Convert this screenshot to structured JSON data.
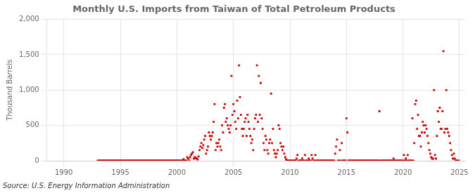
{
  "chart_data": {
    "type": "scatter",
    "title": "Monthly U.S. Imports from Taiwan of Total Petroleum Products",
    "y_label": "Thousand Barrels",
    "source": "Source: U.S. Energy Information Administration",
    "color": "#CC0000",
    "marker": "square",
    "grid": true,
    "xlim": [
      1988.5,
      2025.5
    ],
    "xticks": [
      1990,
      1995,
      2000,
      2005,
      2010,
      2015,
      2020,
      2025
    ],
    "ylim": [
      0,
      2000
    ],
    "yticks": [
      0,
      500,
      {
        "value": 1000,
        "label": "1,000"
      },
      {
        "value": 1500,
        "label": "1,500"
      },
      {
        "value": 2000,
        "label": "2,000"
      }
    ],
    "x": [
      1993.0,
      1993.083,
      1993.167,
      1993.25,
      1993.333,
      1993.417,
      1993.5,
      1993.583,
      1993.667,
      1993.75,
      1993.833,
      1993.917,
      1994.0,
      1994.083,
      1994.167,
      1994.25,
      1994.333,
      1994.417,
      1994.5,
      1994.583,
      1994.667,
      1994.75,
      1994.833,
      1994.917,
      1995.0,
      1995.083,
      1995.167,
      1995.25,
      1995.333,
      1995.417,
      1995.5,
      1995.583,
      1995.667,
      1995.75,
      1995.833,
      1995.917,
      1996.0,
      1996.083,
      1996.167,
      1996.25,
      1996.333,
      1996.417,
      1996.5,
      1996.583,
      1996.667,
      1996.75,
      1996.833,
      1996.917,
      1997.0,
      1997.083,
      1997.167,
      1997.25,
      1997.333,
      1997.417,
      1997.5,
      1997.583,
      1997.667,
      1997.75,
      1997.833,
      1997.917,
      1998.0,
      1998.083,
      1998.167,
      1998.25,
      1998.333,
      1998.417,
      1998.5,
      1998.583,
      1998.667,
      1998.75,
      1998.833,
      1998.917,
      1999.0,
      1999.083,
      1999.167,
      1999.25,
      1999.333,
      1999.417,
      1999.5,
      1999.583,
      1999.667,
      1999.75,
      1999.833,
      1999.917,
      2000.0,
      2000.083,
      2000.167,
      2000.25,
      2000.333,
      2000.417,
      2000.5,
      2000.583,
      2000.667,
      2000.75,
      2000.833,
      2000.917,
      2001.0,
      2001.083,
      2001.167,
      2001.25,
      2001.333,
      2001.417,
      2001.5,
      2001.583,
      2001.667,
      2001.75,
      2001.833,
      2001.917,
      2002.0,
      2002.083,
      2002.167,
      2002.25,
      2002.333,
      2002.417,
      2002.5,
      2002.583,
      2002.667,
      2002.75,
      2002.833,
      2002.917,
      2003.0,
      2003.083,
      2003.167,
      2003.25,
      2003.333,
      2003.417,
      2003.5,
      2003.583,
      2003.667,
      2003.75,
      2003.833,
      2003.917,
      2004.0,
      2004.083,
      2004.167,
      2004.25,
      2004.333,
      2004.417,
      2004.5,
      2004.583,
      2004.667,
      2004.75,
      2004.833,
      2004.917,
      2005.0,
      2005.083,
      2005.167,
      2005.25,
      2005.333,
      2005.417,
      2005.5,
      2005.583,
      2005.667,
      2005.75,
      2005.833,
      2005.917,
      2006.0,
      2006.083,
      2006.167,
      2006.25,
      2006.333,
      2006.417,
      2006.5,
      2006.583,
      2006.667,
      2006.75,
      2006.833,
      2006.917,
      2007.0,
      2007.083,
      2007.167,
      2007.25,
      2007.333,
      2007.417,
      2007.5,
      2007.583,
      2007.667,
      2007.75,
      2007.833,
      2007.917,
      2008.0,
      2008.083,
      2008.167,
      2008.25,
      2008.333,
      2008.417,
      2008.5,
      2008.583,
      2008.667,
      2008.75,
      2008.833,
      2008.917,
      2009.0,
      2009.083,
      2009.167,
      2009.25,
      2009.333,
      2009.417,
      2009.5,
      2009.583,
      2009.667,
      2009.75,
      2009.833,
      2009.917,
      2010.0,
      2010.083,
      2010.167,
      2010.25,
      2010.333,
      2010.417,
      2010.5,
      2010.583,
      2010.667,
      2010.75,
      2010.833,
      2010.917,
      2011.0,
      2011.083,
      2011.167,
      2011.25,
      2011.333,
      2011.417,
      2011.5,
      2011.583,
      2011.667,
      2011.75,
      2011.833,
      2011.917,
      2012.0,
      2012.083,
      2012.167,
      2012.25,
      2012.333,
      2012.417,
      2012.5,
      2012.583,
      2012.667,
      2012.75,
      2012.833,
      2012.917,
      2013.0,
      2013.083,
      2013.167,
      2013.25,
      2013.333,
      2013.417,
      2013.5,
      2013.583,
      2013.667,
      2013.75,
      2013.833,
      2013.917,
      2014.0,
      2014.083,
      2014.167,
      2014.25,
      2014.333,
      2014.417,
      2014.5,
      2014.583,
      2014.667,
      2014.75,
      2014.833,
      2014.917,
      2015.0,
      2015.083,
      2015.167,
      2015.25,
      2015.333,
      2015.417,
      2015.5,
      2015.583,
      2015.667,
      2015.75,
      2015.833,
      2015.917,
      2016.0,
      2016.083,
      2016.167,
      2016.25,
      2016.333,
      2016.417,
      2016.5,
      2016.583,
      2016.667,
      2016.75,
      2016.833,
      2016.917,
      2017.0,
      2017.083,
      2017.167,
      2017.25,
      2017.333,
      2017.417,
      2017.5,
      2017.583,
      2017.667,
      2017.75,
      2017.833,
      2017.917,
      2018.0,
      2018.083,
      2018.167,
      2018.25,
      2018.333,
      2018.417,
      2018.5,
      2018.583,
      2018.667,
      2018.75,
      2018.833,
      2018.917,
      2019.0,
      2019.083,
      2019.167,
      2019.25,
      2019.333,
      2019.417,
      2019.5,
      2019.583,
      2019.667,
      2019.75,
      2019.833,
      2019.917,
      2020.0,
      2020.083,
      2020.167,
      2020.25,
      2020.333,
      2020.417,
      2020.5,
      2020.583,
      2020.667,
      2020.75,
      2020.833,
      2020.917,
      2021.0,
      2021.083,
      2021.167,
      2021.25,
      2021.333,
      2021.417,
      2021.5,
      2021.583,
      2021.667,
      2021.75,
      2021.833,
      2021.917,
      2022.0,
      2022.083,
      2022.167,
      2022.25,
      2022.333,
      2022.417,
      2022.5,
      2022.583,
      2022.667,
      2022.75,
      2022.833,
      2022.917,
      2023.0,
      2023.083,
      2023.167,
      2023.25,
      2023.333,
      2023.417,
      2023.5,
      2023.583,
      2023.667,
      2023.75,
      2023.833,
      2023.917,
      2024.0,
      2024.083,
      2024.167,
      2024.25,
      2024.333,
      2024.417,
      2024.5,
      2024.583,
      2024.667,
      2024.75,
      2024.833,
      2024.917
    ],
    "values": [
      0,
      0,
      0,
      0,
      0,
      0,
      0,
      0,
      0,
      0,
      0,
      0,
      0,
      0,
      0,
      0,
      0,
      0,
      0,
      0,
      0,
      0,
      0,
      0,
      0,
      0,
      0,
      0,
      0,
      0,
      0,
      0,
      0,
      0,
      0,
      0,
      0,
      0,
      0,
      0,
      0,
      0,
      0,
      0,
      0,
      0,
      0,
      0,
      0,
      0,
      0,
      0,
      0,
      0,
      0,
      0,
      0,
      0,
      0,
      0,
      0,
      0,
      0,
      0,
      0,
      0,
      0,
      0,
      0,
      0,
      0,
      0,
      0,
      0,
      0,
      0,
      0,
      0,
      0,
      0,
      0,
      0,
      0,
      0,
      0,
      0,
      0,
      0,
      0,
      0,
      0,
      20,
      0,
      0,
      0,
      50,
      30,
      0,
      50,
      80,
      100,
      120,
      30,
      50,
      40,
      30,
      20,
      60,
      150,
      200,
      250,
      180,
      220,
      300,
      350,
      100,
      150,
      200,
      400,
      350,
      300,
      350,
      400,
      550,
      800,
      150,
      250,
      200,
      250,
      300,
      200,
      150,
      500,
      400,
      750,
      800,
      550,
      600,
      500,
      450,
      400,
      500,
      1200,
      650,
      800,
      700,
      550,
      450,
      850,
      600,
      1350,
      900,
      650,
      450,
      350,
      450,
      550,
      600,
      350,
      650,
      550,
      450,
      350,
      250,
      300,
      150,
      450,
      600,
      650,
      1350,
      550,
      1200,
      650,
      1100,
      600,
      450,
      250,
      150,
      350,
      300,
      150,
      100,
      250,
      300,
      950,
      250,
      450,
      150,
      100,
      50,
      100,
      150,
      500,
      450,
      250,
      200,
      150,
      200,
      100,
      50,
      20,
      0,
      0,
      0,
      0,
      0,
      0,
      0,
      0,
      0,
      0,
      30,
      80,
      0,
      0,
      0,
      0,
      30,
      0,
      0,
      80,
      0,
      0,
      0,
      30,
      0,
      0,
      80,
      30,
      0,
      0,
      80,
      0,
      0,
      0,
      0,
      0,
      0,
      0,
      0,
      0,
      0,
      0,
      0,
      0,
      0,
      0,
      0,
      0,
      0,
      0,
      0,
      100,
      200,
      300,
      0,
      0,
      150,
      0,
      250,
      0,
      0,
      0,
      0,
      600,
      400,
      0,
      0,
      0,
      0,
      0,
      0,
      0,
      0,
      0,
      0,
      0,
      0,
      0,
      0,
      0,
      0,
      0,
      0,
      0,
      0,
      0,
      0,
      0,
      0,
      0,
      0,
      0,
      0,
      0,
      0,
      0,
      0,
      0,
      700,
      0,
      0,
      0,
      0,
      0,
      0,
      0,
      0,
      0,
      0,
      0,
      0,
      0,
      0,
      30,
      0,
      0,
      0,
      0,
      0,
      0,
      0,
      0,
      0,
      0,
      80,
      0,
      30,
      0,
      80,
      0,
      0,
      0,
      0,
      600,
      0,
      250,
      800,
      850,
      450,
      650,
      350,
      350,
      200,
      400,
      550,
      500,
      400,
      500,
      450,
      350,
      250,
      150,
      100,
      50,
      30,
      30,
      1000,
      80,
      30,
      350,
      700,
      550,
      750,
      450,
      450,
      700,
      1550,
      400,
      450,
      1000,
      450,
      400,
      350,
      250,
      150,
      80,
      30,
      100,
      30,
      0,
      0,
      0,
      0
    ]
  }
}
